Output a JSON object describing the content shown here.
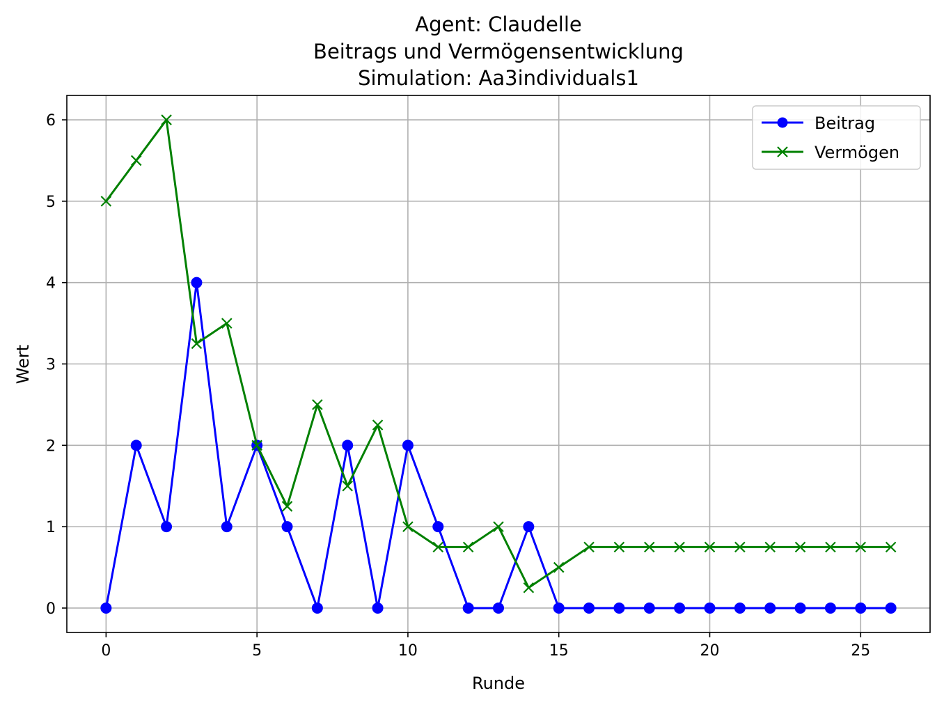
{
  "chart_data": {
    "type": "line",
    "title_lines": [
      "Agent: Claudelle",
      "Beitrags und Vermögensentwicklung",
      "Simulation: Aa3individuals1"
    ],
    "xlabel": "Runde",
    "ylabel": "Wert",
    "x": [
      0,
      1,
      2,
      3,
      4,
      5,
      6,
      7,
      8,
      9,
      10,
      11,
      12,
      13,
      14,
      15,
      16,
      17,
      18,
      19,
      20,
      21,
      22,
      23,
      24,
      25,
      26
    ],
    "xlim": [
      -1.3,
      27.3
    ],
    "ylim": [
      -0.3,
      6.3
    ],
    "xticks": [
      0,
      5,
      10,
      15,
      20,
      25
    ],
    "yticks": [
      0,
      1,
      2,
      3,
      4,
      5,
      6
    ],
    "grid": true,
    "legend_position": "top-right",
    "series": [
      {
        "name": "Beitrag",
        "color": "#0000ff",
        "marker": "circle",
        "values": [
          0,
          2,
          1,
          4,
          1,
          2,
          1,
          0,
          2,
          0,
          2,
          1,
          0,
          0,
          1,
          0,
          0,
          0,
          0,
          0,
          0,
          0,
          0,
          0,
          0,
          0,
          0
        ]
      },
      {
        "name": "Vermögen",
        "color": "#008000",
        "marker": "x",
        "values": [
          5,
          5.5,
          6,
          3.25,
          3.5,
          2,
          1.25,
          2.5,
          1.5,
          2.25,
          1,
          0.75,
          0.75,
          1,
          0.25,
          0.5,
          0.75,
          0.75,
          0.75,
          0.75,
          0.75,
          0.75,
          0.75,
          0.75,
          0.75,
          0.75,
          0.75
        ]
      }
    ]
  }
}
